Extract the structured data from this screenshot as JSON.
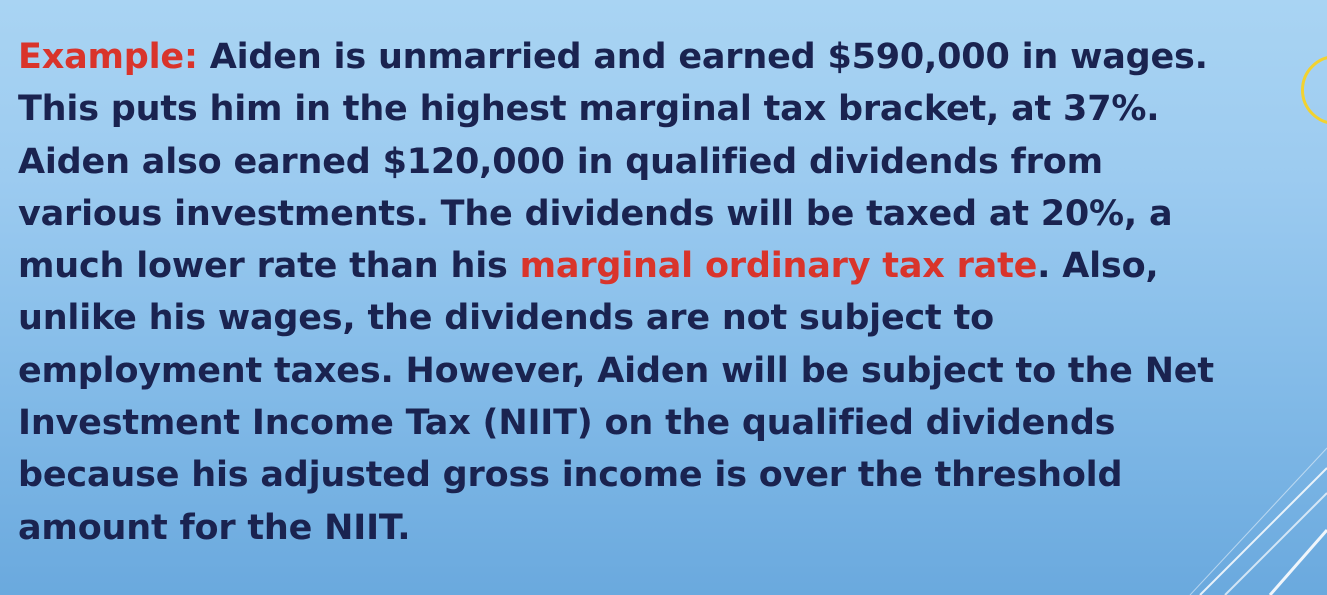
{
  "slide": {
    "lines": [
      {
        "prefix": "Example:",
        "text": " Aiden is unmarried and earned $590,000 in wages."
      },
      {
        "text": "This puts him in the highest marginal tax bracket, at 37%."
      },
      {
        "text": "Aiden also earned $120,000 in qualified dividends from"
      },
      {
        "text": "various investments. The dividends will be taxed at 20%, a"
      },
      {
        "before": "much lower rate than his ",
        "highlight": "marginal ordinary tax rate",
        "after": ". Also,"
      },
      {
        "text": "unlike his wages, the dividends are not subject to"
      },
      {
        "text": "employment taxes. However, Aiden will be subject to the Net"
      },
      {
        "text": "Investment Income Tax (NIIT) on the qualified dividends"
      },
      {
        "text": "because his adjusted gross income is over the threshold"
      },
      {
        "text": "amount for the NIIT."
      }
    ]
  },
  "colors": {
    "body_text": "#1a2350",
    "accent_red": "#d9342b",
    "deco_yellow": "#f2d230",
    "deco_white": "#ffffff"
  }
}
